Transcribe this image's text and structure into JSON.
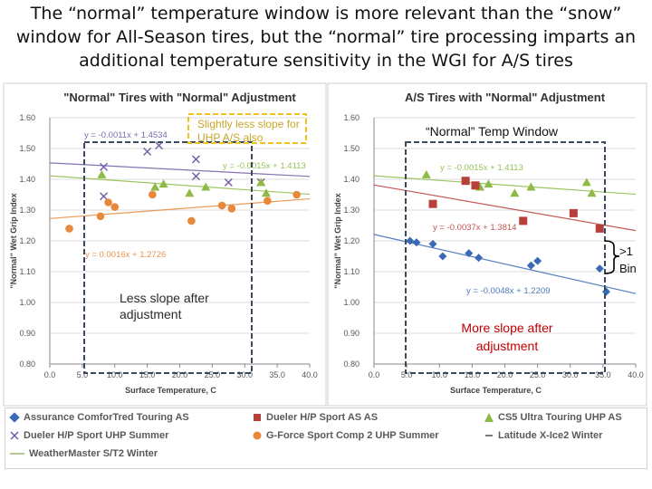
{
  "heading": [
    "The “normal” temperature window is more relevant than the “snow”",
    "window for All-Season tires, but the “normal” tire processing imparts an",
    "additional temperature sensitivity in the WGI for A/S tires"
  ],
  "series_styles": [
    {
      "name": "Assurance ComforTred Touring AS",
      "color": "#3b6ab5",
      "marker": "diamond"
    },
    {
      "name": "Dueler H/P Sport AS AS",
      "color": "#b8403a",
      "marker": "square"
    },
    {
      "name": "CS5 Ultra Touring UHP AS",
      "color": "#8dbb45",
      "marker": "triangle"
    },
    {
      "name": "Dueler H/P Sport UHP Summer",
      "color": "#6f5aa6",
      "marker": "x"
    },
    {
      "name": "G-Force Sport Comp 2 UHP Summer",
      "color": "#e8883a",
      "marker": "circle"
    },
    {
      "name": "Latitude X-Ice2 Winter",
      "color": "#7a7a7a",
      "marker": "dash"
    },
    {
      "name": "WeatherMaster S/T2 Winter",
      "color": "#b3c990",
      "marker": "line"
    }
  ],
  "chart_data": [
    {
      "type": "scatter",
      "title": "\"Normal\" Tires with \"Normal\" Adjustment",
      "xlabel": "Surface Temperature, C",
      "ylabel": "\"Normal\" Wet Grip Index",
      "xlim": [
        0,
        40
      ],
      "ylim": [
        0.8,
        1.6
      ],
      "xticks": [
        "0.0",
        "5.0",
        "10.0",
        "15.0",
        "20.0",
        "25.0",
        "30.0",
        "35.0",
        "40.0"
      ],
      "yticks": [
        "0.80",
        "0.90",
        "1.00",
        "1.10",
        "1.20",
        "1.30",
        "1.40",
        "1.50",
        "1.60"
      ],
      "grid": true,
      "series": [
        {
          "name": "Dueler H/P Sport UHP Summer",
          "x": [
            8.3,
            8.3,
            15.0,
            16.8,
            22.5,
            22.5,
            27.5,
            32.5
          ],
          "y": [
            1.44,
            1.345,
            1.49,
            1.51,
            1.465,
            1.41,
            1.39,
            1.39
          ]
        },
        {
          "name": "CS5 Ultra Touring UHP AS",
          "x": [
            8.0,
            16.2,
            17.5,
            21.5,
            24.0,
            32.5,
            33.3
          ],
          "y": [
            1.415,
            1.375,
            1.385,
            1.355,
            1.375,
            1.39,
            1.355
          ]
        },
        {
          "name": "G-Force Sport Comp 2 UHP Summer",
          "x": [
            3.0,
            7.8,
            9.0,
            10.0,
            15.8,
            21.8,
            26.5,
            28.0,
            33.5,
            38.0
          ],
          "y": [
            1.24,
            1.28,
            1.325,
            1.31,
            1.35,
            1.265,
            1.315,
            1.305,
            1.33,
            1.35
          ]
        }
      ],
      "trendlines": [
        {
          "series": "Dueler H/P Sport UHP Summer",
          "label": "y = -0.0011x + 1.4534",
          "slope": -0.0011,
          "intercept": 1.4534
        },
        {
          "series": "CS5 Ultra Touring UHP AS",
          "label": "y = -0.0015x + 1.4113",
          "slope": -0.0015,
          "intercept": 1.4113
        },
        {
          "series": "G-Force Sport Comp 2 UHP Summer",
          "label": "y = 0.0016x + 1.2726",
          "slope": 0.0016,
          "intercept": 1.2726
        }
      ],
      "annotations": [
        "Slightly less slope for UHP A/S also",
        "Less slope after adjustment"
      ]
    },
    {
      "type": "scatter",
      "title": "A/S Tires with \"Normal\" Adjustment",
      "xlabel": "Surface Temperature, C",
      "ylabel": "\"Normal\" Wet Grip Index",
      "xlim": [
        0,
        40
      ],
      "ylim": [
        0.8,
        1.6
      ],
      "xticks": [
        "0.0",
        "5.0",
        "10.0",
        "15.0",
        "20.0",
        "25.0",
        "30.0",
        "35.0",
        "40.0"
      ],
      "yticks": [
        "0.80",
        "0.90",
        "1.00",
        "1.10",
        "1.20",
        "1.30",
        "1.40",
        "1.50",
        "1.60"
      ],
      "grid": true,
      "series": [
        {
          "name": "CS5 Ultra Touring UHP AS",
          "x": [
            8.0,
            16.2,
            17.5,
            21.5,
            24.0,
            32.5,
            33.3
          ],
          "y": [
            1.415,
            1.375,
            1.385,
            1.355,
            1.375,
            1.39,
            1.355
          ]
        },
        {
          "name": "Dueler H/P Sport AS AS",
          "x": [
            9.0,
            14.0,
            15.5,
            22.8,
            30.5,
            34.5
          ],
          "y": [
            1.32,
            1.395,
            1.38,
            1.265,
            1.29,
            1.24
          ]
        },
        {
          "name": "Assurance ComforTred Touring AS",
          "x": [
            5.5,
            6.5,
            9.0,
            10.5,
            14.5,
            16.0,
            24.0,
            25.0,
            34.5,
            35.5
          ],
          "y": [
            1.2,
            1.195,
            1.19,
            1.15,
            1.16,
            1.145,
            1.12,
            1.135,
            1.11,
            1.035
          ]
        }
      ],
      "trendlines": [
        {
          "series": "CS5 Ultra Touring UHP AS",
          "label": "y = -0.0015x + 1.4113",
          "slope": -0.0015,
          "intercept": 1.4113
        },
        {
          "series": "Dueler H/P Sport AS AS",
          "label": "y = -0.0037x + 1.3814",
          "slope": -0.0037,
          "intercept": 1.3814
        },
        {
          "series": "Assurance ComforTred Touring AS",
          "label": "y = -0.0048x + 1.2209",
          "slope": -0.0048,
          "intercept": 1.2209
        }
      ],
      "annotations": [
        "“Normal” Temp Window",
        "More slope after adjustment",
        ">1 Bin"
      ]
    }
  ]
}
